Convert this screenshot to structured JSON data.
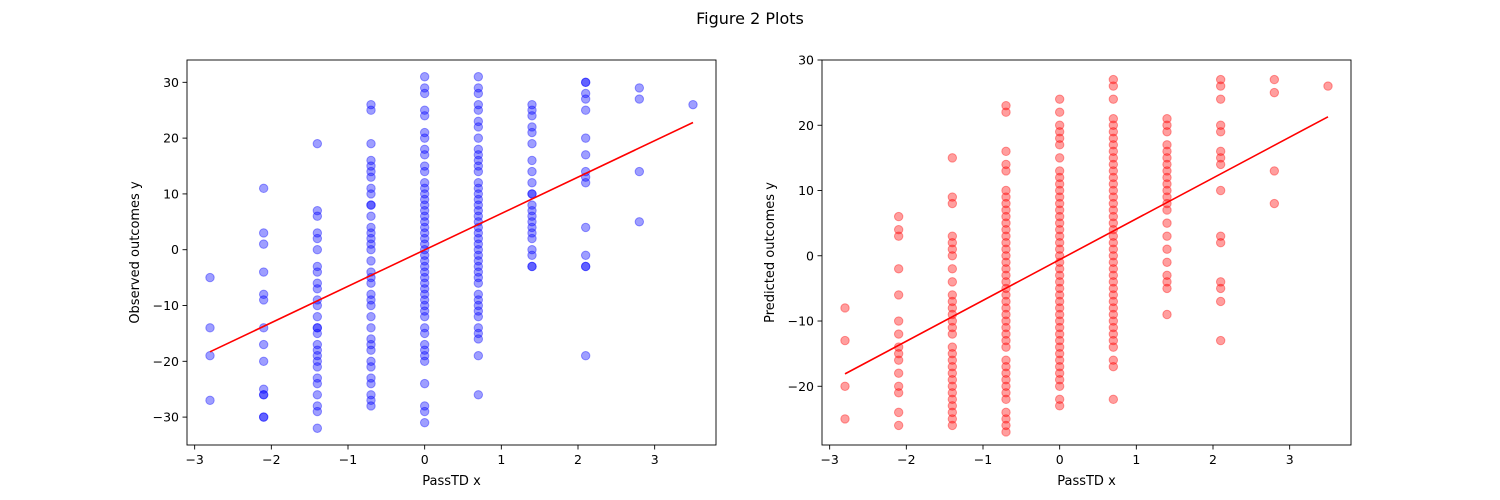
{
  "figure": {
    "title": "Figure 2 Plots"
  },
  "chart_data": [
    {
      "type": "scatter",
      "title": "",
      "xlabel": "PassTD x",
      "ylabel": "Observed outcomes y",
      "xlim": [
        -3.1,
        3.8
      ],
      "ylim": [
        -35,
        34
      ],
      "xticks": [
        -3,
        -2,
        -1,
        0,
        1,
        2,
        3
      ],
      "yticks": [
        -30,
        -20,
        -10,
        0,
        10,
        20,
        30
      ],
      "grid": false,
      "legend": "none",
      "point_color": "#0000ff",
      "line_color": "#ff0000",
      "groups": [
        {
          "x": -2.8,
          "y": [
            -5,
            -14,
            -19,
            -27
          ]
        },
        {
          "x": -2.1,
          "y": [
            11,
            3,
            1,
            -4,
            -8,
            -9,
            -14,
            -17,
            -20,
            -25,
            -26,
            -26,
            -30,
            -30
          ]
        },
        {
          "x": -1.4,
          "y": [
            19,
            7,
            6,
            3,
            2,
            0,
            -3,
            -4,
            -6,
            -7,
            -9,
            -10,
            -12,
            -14,
            -14,
            -15,
            -17,
            -18,
            -19,
            -20,
            -21,
            -23,
            -24,
            -26,
            -28,
            -29,
            -32
          ]
        },
        {
          "x": -0.7,
          "y": [
            26,
            25,
            19,
            16,
            15,
            14,
            13,
            11,
            10,
            8,
            8,
            6,
            4,
            3,
            2,
            1,
            0,
            -2,
            -4,
            -5,
            -6,
            -8,
            -9,
            -10,
            -12,
            -14,
            -16,
            -17,
            -18,
            -20,
            -21,
            -23,
            -24,
            -26,
            -27,
            -28
          ]
        },
        {
          "x": 0.0,
          "y": [
            31,
            29,
            28,
            25,
            24,
            21,
            20,
            18,
            17,
            15,
            14,
            12,
            11,
            10,
            9,
            8,
            7,
            6,
            5,
            4,
            3,
            2,
            1,
            0,
            -1,
            -2,
            -3,
            -4,
            -5,
            -6,
            -7,
            -8,
            -9,
            -10,
            -11,
            -12,
            -14,
            -15,
            -17,
            -18,
            -19,
            -20,
            -24,
            -28,
            -29,
            -31
          ]
        },
        {
          "x": 0.7,
          "y": [
            31,
            29,
            28,
            26,
            25,
            23,
            22,
            20,
            18,
            17,
            16,
            15,
            14,
            12,
            11,
            10,
            9,
            8,
            7,
            6,
            5,
            4,
            3,
            2,
            1,
            0,
            -1,
            -2,
            -3,
            -4,
            -5,
            -6,
            -8,
            -9,
            -10,
            -11,
            -12,
            -14,
            -15,
            -16,
            -19,
            -26
          ]
        },
        {
          "x": 1.4,
          "y": [
            26,
            25,
            24,
            22,
            21,
            19,
            16,
            14,
            12,
            10,
            10,
            8,
            7,
            6,
            5,
            4,
            3,
            2,
            0,
            -1,
            -3,
            -3
          ]
        },
        {
          "x": 2.1,
          "y": [
            30,
            30,
            28,
            27,
            25,
            20,
            17,
            14,
            13,
            12,
            4,
            -1,
            -3,
            -3,
            -19
          ]
        },
        {
          "x": 2.8,
          "y": [
            29,
            27,
            14,
            5
          ]
        },
        {
          "x": 3.5,
          "y": [
            26
          ]
        }
      ],
      "fit_line": {
        "x": [
          -2.8,
          3.5
        ],
        "y": [
          -18.3,
          22.8
        ]
      }
    },
    {
      "type": "scatter",
      "title": "",
      "xlabel": "PassTD x",
      "ylabel": "Predicted outcomes y",
      "xlim": [
        -3.1,
        3.8
      ],
      "ylim": [
        -29,
        30
      ],
      "xticks": [
        -3,
        -2,
        -1,
        0,
        1,
        2,
        3
      ],
      "yticks": [
        -20,
        -10,
        0,
        10,
        20,
        30
      ],
      "grid": false,
      "legend": "none",
      "point_color": "#ff0000",
      "line_color": "#ff0000",
      "groups": [
        {
          "x": -2.8,
          "y": [
            -8,
            -13,
            -20,
            -25
          ]
        },
        {
          "x": -2.1,
          "y": [
            6,
            4,
            3,
            -2,
            -6,
            -10,
            -12,
            -14,
            -15,
            -16,
            -18,
            -20,
            -21,
            -24,
            -26
          ]
        },
        {
          "x": -1.4,
          "y": [
            15,
            9,
            8,
            3,
            2,
            1,
            0,
            -2,
            -4,
            -6,
            -7,
            -8,
            -9,
            -10,
            -11,
            -12,
            -14,
            -15,
            -16,
            -17,
            -18,
            -19,
            -20,
            -21,
            -22,
            -23,
            -24,
            -25,
            -26
          ]
        },
        {
          "x": -0.7,
          "y": [
            23,
            22,
            16,
            14,
            13,
            10,
            9,
            8,
            7,
            6,
            5,
            4,
            3,
            2,
            1,
            0,
            -1,
            -2,
            -3,
            -4,
            -5,
            -6,
            -7,
            -8,
            -9,
            -10,
            -11,
            -12,
            -13,
            -14,
            -16,
            -17,
            -18,
            -19,
            -20,
            -21,
            -22,
            -24,
            -25,
            -26,
            -27
          ]
        },
        {
          "x": 0.0,
          "y": [
            24,
            22,
            20,
            19,
            18,
            17,
            15,
            13,
            12,
            11,
            10,
            9,
            8,
            7,
            6,
            5,
            4,
            3,
            2,
            1,
            0,
            -1,
            -2,
            -3,
            -4,
            -5,
            -6,
            -7,
            -8,
            -9,
            -10,
            -11,
            -12,
            -13,
            -14,
            -15,
            -16,
            -17,
            -18,
            -19,
            -20,
            -22,
            -23
          ]
        },
        {
          "x": 0.7,
          "y": [
            27,
            26,
            24,
            21,
            20,
            19,
            18,
            17,
            16,
            15,
            14,
            13,
            12,
            11,
            10,
            9,
            8,
            7,
            6,
            5,
            4,
            3,
            2,
            1,
            0,
            -1,
            -2,
            -3,
            -4,
            -5,
            -6,
            -7,
            -8,
            -9,
            -10,
            -11,
            -12,
            -13,
            -14,
            -16,
            -17,
            -22
          ]
        },
        {
          "x": 1.4,
          "y": [
            21,
            20,
            19,
            17,
            16,
            15,
            14,
            13,
            12,
            11,
            10,
            9,
            8,
            7,
            5,
            3,
            1,
            -1,
            -3,
            -4,
            -5,
            -9
          ]
        },
        {
          "x": 2.1,
          "y": [
            27,
            26,
            24,
            20,
            19,
            16,
            15,
            14,
            10,
            3,
            2,
            -4,
            -5,
            -7,
            -13
          ]
        },
        {
          "x": 2.8,
          "y": [
            27,
            25,
            13,
            8
          ]
        },
        {
          "x": 3.5,
          "y": [
            26
          ]
        }
      ],
      "fit_line": {
        "x": [
          -2.8,
          3.5
        ],
        "y": [
          -18.1,
          21.3
        ]
      }
    }
  ]
}
